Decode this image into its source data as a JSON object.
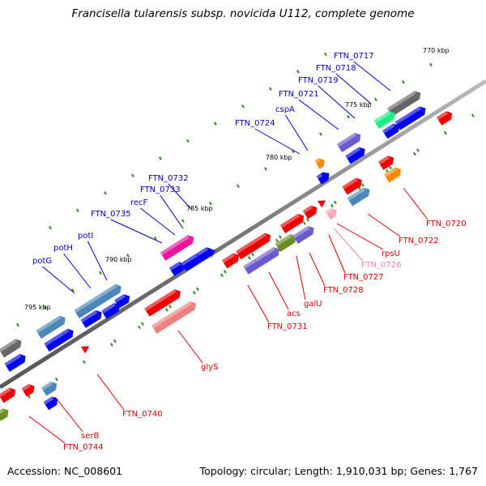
{
  "title": "Francisella tularensis subsp. novicida U112, complete genome",
  "footer": {
    "accession": "Accession: NC_008601",
    "topology": "Topology: circular; Length: 1,910,031 bp; Genes: 1,767"
  },
  "colors": {
    "backbone": "#888888",
    "tick": "#2e8b1f",
    "label_top": "#0000cc",
    "label_bottom": "#dd0000",
    "label_pink": "#ee88aa",
    "gene_red": "#ee0000",
    "gene_blue": "#0000ee",
    "gene_steel": "#4a86b8",
    "gene_purple": "#6a5acd",
    "gene_gray": "#666666",
    "gene_teal": "#1aee88",
    "gene_magenta": "#ee1199",
    "gene_salmon": "#ee8080",
    "gene_olive": "#6b8e23",
    "gene_orange": "#ff8800",
    "gene_pink": "#ffaabb"
  },
  "kbp_labels": [
    "770 kbp",
    "775 kbp",
    "780 kbp",
    "785 kbp",
    "790 kbp",
    "795 kbp"
  ],
  "top_labels": [
    "FTN_0717",
    "FTN_0718",
    "FTN_0719",
    "FTN_0721",
    "cspA",
    "FTN_0724",
    "FTN_0732",
    "FTN_0733",
    "recF",
    "FTN_0735",
    "potI",
    "potH",
    "potG"
  ],
  "bottom_labels": [
    "FTN_0720",
    "FTN_0722",
    "rpsU",
    "FTN_0726",
    "FTN_0727",
    "FTN_0728",
    "galU",
    "acs",
    "FTN_0731",
    "glyS",
    "FTN_0740",
    "serB",
    "FTN_0744"
  ]
}
